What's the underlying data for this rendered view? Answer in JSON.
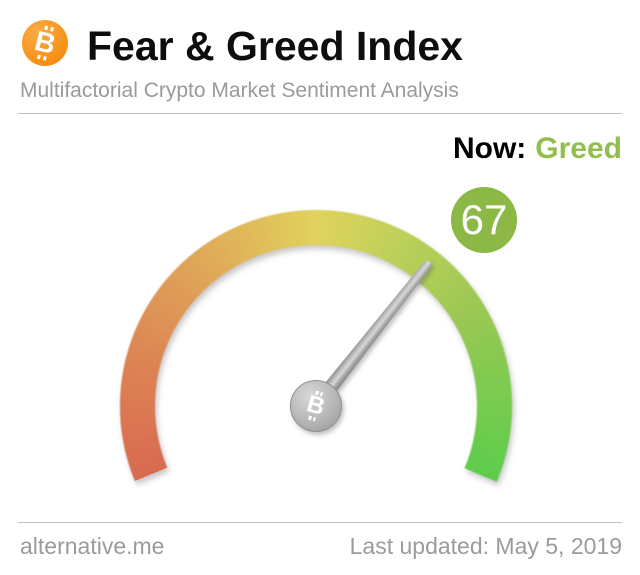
{
  "header": {
    "logo_icon": "bitcoin-icon",
    "brand_color": "#F7931A",
    "title": "Fear & Greed Index",
    "subtitle": "Multifactorial Crypto Market Sentiment Analysis"
  },
  "status": {
    "label": "Now:",
    "value": "Greed",
    "value_color": "#92BE4D"
  },
  "gauge": {
    "value_badge": "67",
    "badge_color": "#8CB945",
    "hub_icon": "bitcoin-icon",
    "needle_color": "#a8a8a8",
    "arc": {
      "start_angle_deg": 202.5,
      "sweep_deg": 225,
      "stops": [
        {
          "color": "#D96A51",
          "deg": 0
        },
        {
          "color": "#DC8253",
          "deg": 34
        },
        {
          "color": "#DF9C57",
          "deg": 63
        },
        {
          "color": "#E0C05A",
          "deg": 97
        },
        {
          "color": "#E0D35C",
          "deg": 113
        },
        {
          "color": "#BCD05A",
          "deg": 140
        },
        {
          "color": "#9CC853",
          "deg": 170
        },
        {
          "color": "#79CB4F",
          "deg": 200
        },
        {
          "color": "#5ECC4B",
          "deg": 225
        }
      ]
    }
  },
  "chart_data": {
    "type": "gauge",
    "title": "Fear & Greed Index",
    "value": 67,
    "min": 0,
    "max": 100,
    "classification": "Greed",
    "scale_colors_low_to_high": [
      "#D96A51",
      "#DF9C57",
      "#E0D35C",
      "#9CC853",
      "#5ECC4B"
    ]
  },
  "icons": {
    "btc_glyph": "B"
  },
  "footer": {
    "site": "alternative.me",
    "last_updated": "Last updated: May 5, 2019"
  }
}
